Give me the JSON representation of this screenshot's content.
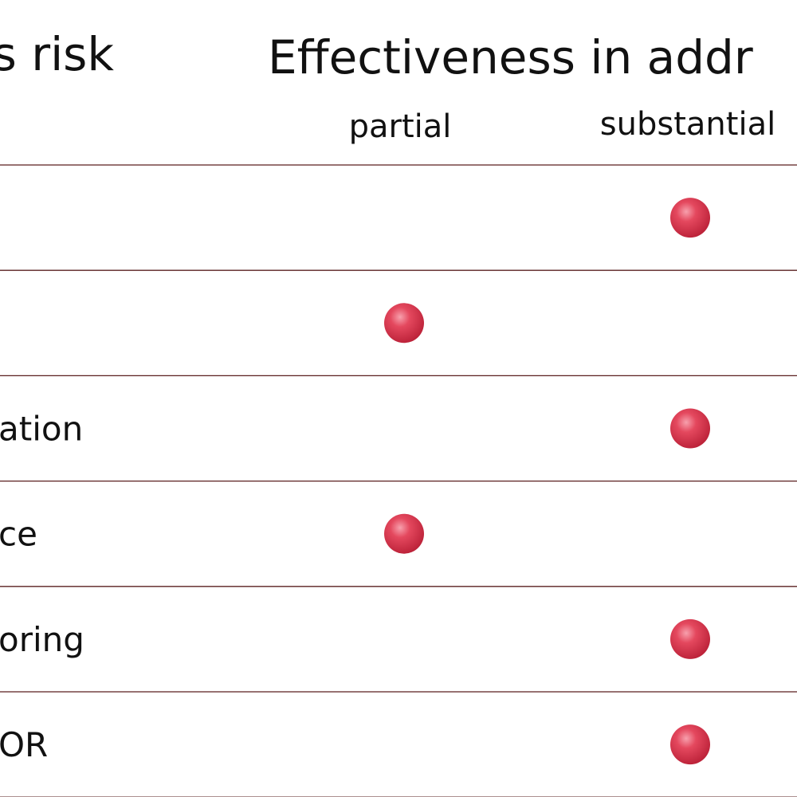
{
  "header": {
    "left": "is risk",
    "title": "Effectiveness in addr",
    "columns": [
      "partial",
      "substantial"
    ]
  },
  "table": {
    "rows": [
      {
        "column": 1
      },
      {
        "column": 0
      },
      {
        "label": "ation",
        "column": 1
      },
      {
        "label": "ce",
        "column": 0
      },
      {
        "label": "oring",
        "column": 1
      },
      {
        "label": "OR",
        "column": 1
      }
    ]
  }
}
